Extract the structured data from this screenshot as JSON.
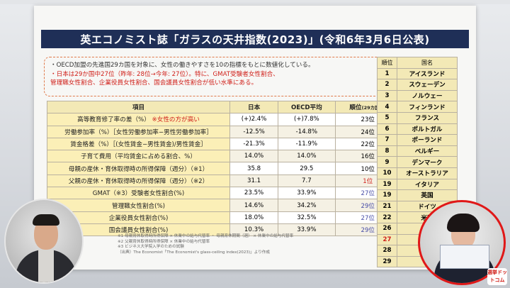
{
  "slide": {
    "title": "英エコノミスト誌「ガラスの天井指数(2023)」(令和6年3月6日公表)",
    "notes": [
      {
        "text": "・OECD加盟の先進国29カ国を対象に、女性の働きやすさを10の指標をもとに数値化している。",
        "red": false
      },
      {
        "text": "・日本は29か国中27位（昨年: 28位→今年: 27位）。特に、GMAT受験者女性割合、",
        "red": true
      },
      {
        "text": "管理職女性割合、企業役員女性割合、国会議員女性割合が低い水準にある。",
        "red": true
      }
    ],
    "table": {
      "headers": {
        "item": "項目",
        "japan": "日本",
        "oecd": "OECD平均",
        "rank": "順位",
        "rank_sub": "(29カ国中)"
      },
      "rows": [
        {
          "item": "高等教育修了率の差（%）",
          "item_note": "※女性の方が高い",
          "japan": "(+)2.4%",
          "oecd": "(+)7.8%",
          "rank": "23位",
          "rank_color": "black"
        },
        {
          "item": "労働参加率（%）［女性労働参加率−男性労働参加率］",
          "item_note": "",
          "japan": "-12.5%",
          "oecd": "-14.8%",
          "rank": "24位",
          "rank_color": "black"
        },
        {
          "item": "賃金格差（%）［(女性賃金−男性賃金)/男性賃金］",
          "item_note": "",
          "japan": "-21.3%",
          "oecd": "-11.9%",
          "rank": "22位",
          "rank_color": "black"
        },
        {
          "item": "子育て費用（平均賃金に占める割合、%）",
          "item_note": "",
          "japan": "14.0%",
          "oecd": "14.0%",
          "rank": "16位",
          "rank_color": "black"
        },
        {
          "item": "母親の産休・育休取得時の所得保障（週分）（※1）",
          "item_note": "",
          "japan": "35.8",
          "oecd": "29.5",
          "rank": "10位",
          "rank_color": "black"
        },
        {
          "item": "父親の産休・育休取得時の所得保障（週分）（※2）",
          "item_note": "",
          "japan": "31.1",
          "oecd": "7.7",
          "rank": "1位",
          "rank_color": "red"
        },
        {
          "item": "GMAT（※3）受験者女性割合(%)",
          "item_note": "",
          "japan": "23.5%",
          "oecd": "33.9%",
          "rank": "27位",
          "rank_color": "blue"
        },
        {
          "item": "管理職女性割合(%)",
          "item_note": "",
          "japan": "14.6%",
          "oecd": "34.2%",
          "rank": "29位",
          "rank_color": "blue"
        },
        {
          "item": "企業役員女性割合(%)",
          "item_note": "",
          "japan": "18.0%",
          "oecd": "32.5%",
          "rank": "27位",
          "rank_color": "blue"
        },
        {
          "item": "国会議員女性割合(%)",
          "item_note": "",
          "japan": "10.3%",
          "oecd": "33.9%",
          "rank": "29位",
          "rank_color": "blue"
        }
      ]
    },
    "ranking": {
      "headers": {
        "rank": "順位",
        "country": "国名"
      },
      "rows": [
        {
          "rank": "1",
          "country": "アイスランド"
        },
        {
          "rank": "2",
          "country": "スウェーデン"
        },
        {
          "rank": "3",
          "country": "ノルウェー"
        },
        {
          "rank": "4",
          "country": "フィンランド"
        },
        {
          "rank": "5",
          "country": "フランス"
        },
        {
          "rank": "6",
          "country": "ポルトガル"
        },
        {
          "rank": "7",
          "country": "ポーランド"
        },
        {
          "rank": "8",
          "country": "ベルギー"
        },
        {
          "rank": "9",
          "country": "デンマーク"
        },
        {
          "rank": "10",
          "country": "オーストラリア"
        },
        {
          "rank": "19",
          "country": "イタリア"
        },
        {
          "rank": "19",
          "country": "英国"
        },
        {
          "rank": "21",
          "country": "ドイツ"
        },
        {
          "rank": "22",
          "country": "米国"
        },
        {
          "rank": "26",
          "country": "ス"
        },
        {
          "rank": "27",
          "country": ""
        },
        {
          "rank": "28",
          "country": "ト"
        },
        {
          "rank": "29",
          "country": "韓"
        }
      ]
    },
    "footnotes": [
      "※1 母親育休取得時所得保障 × 休業中の給与代替率 ・ 母親育休期間（週） × 休業中の給与代替率",
      "※2 父親育休取得時所得保障 × 休業中の給与代替率",
      "※3 ビジネス大学院入学のための試験",
      "（出典）The Economist「The Economist's glass-ceiling index(2023)」より作成"
    ]
  },
  "overlay": {
    "logo_text": "選挙ドットコム",
    "highlight_color": "#e01818",
    "title_color": "#1f2f57"
  }
}
